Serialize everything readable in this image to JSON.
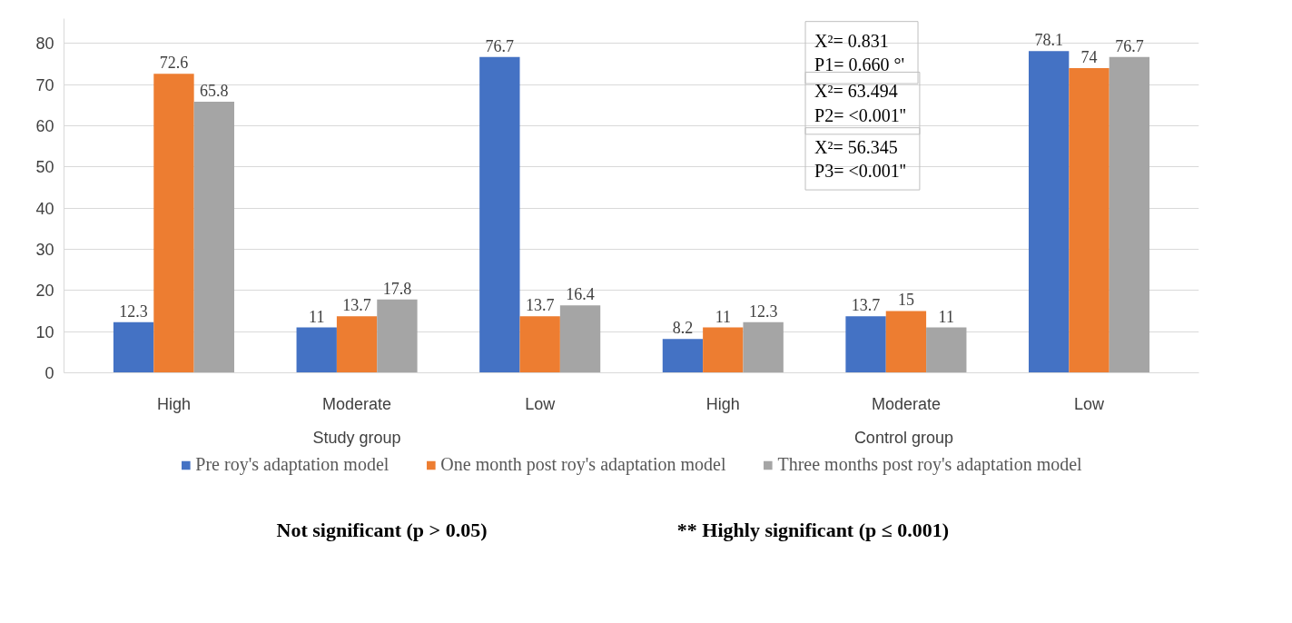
{
  "chart_data": {
    "type": "bar",
    "categories": [
      "High",
      "Moderate",
      "Low",
      "High",
      "Moderate",
      "Low"
    ],
    "series": [
      {
        "name": "Pre roy's adaptation model",
        "color": "#4472c4",
        "values": [
          12.3,
          11,
          76.7,
          8.2,
          13.7,
          78.1
        ]
      },
      {
        "name": "One month post roy's adaptation model",
        "color": "#ed7d31",
        "values": [
          72.6,
          13.7,
          13.7,
          11,
          15,
          74
        ]
      },
      {
        "name": "Three months post roy's adaptation model",
        "color": "#a5a5a5",
        "values": [
          65.8,
          17.8,
          16.4,
          12.3,
          11,
          76.7
        ]
      }
    ],
    "ylim": [
      0,
      86
    ],
    "yticks": [
      0,
      10,
      20,
      30,
      40,
      50,
      60,
      70,
      80
    ],
    "grid": "y",
    "legend": "bottom",
    "data_labels": true,
    "annotations": [
      "Study group",
      "Control  group",
      "X²= 0.831\n P1= 0.660 °'",
      "X²= 63.494\n P2= <0.001''",
      "X²= 56.345\n P3= <0.001''",
      "Not significant (p > 0.05)",
      "** Highly significant (p ≤ 0.001)"
    ]
  }
}
